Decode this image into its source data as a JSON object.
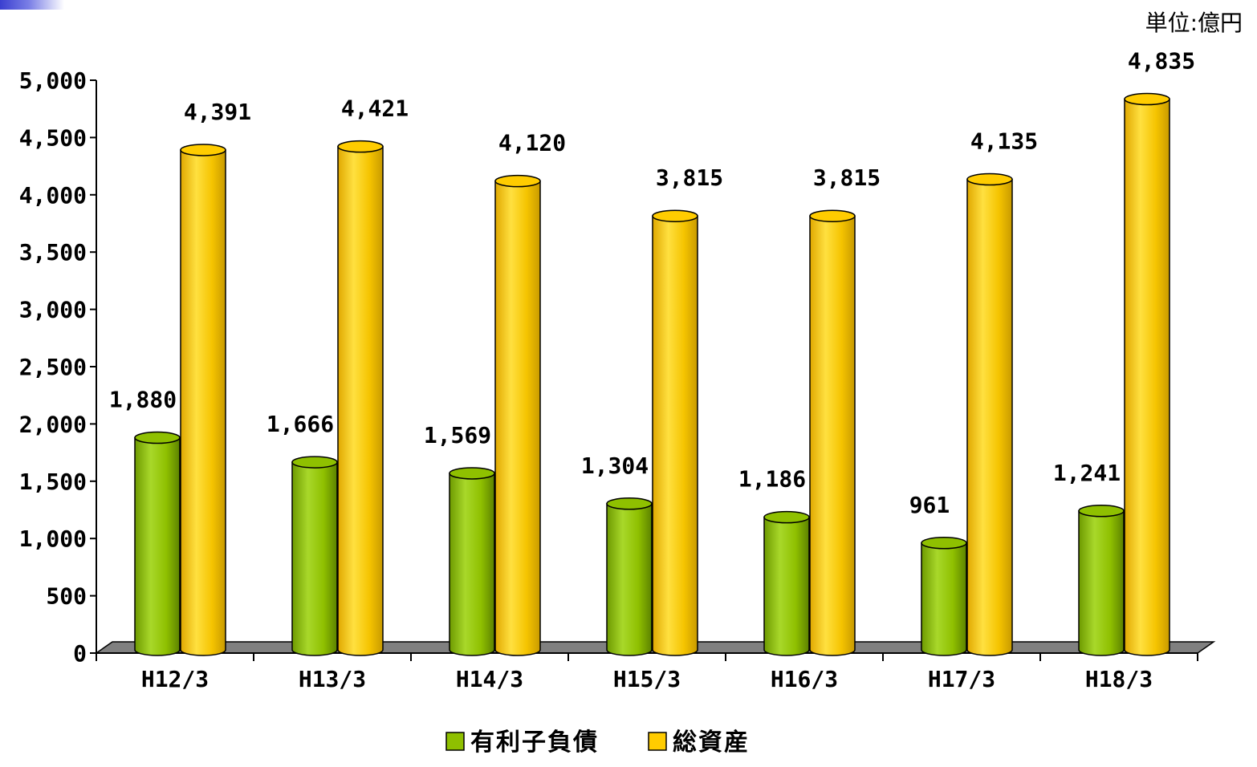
{
  "unit_label": "単位:億円",
  "colors": {
    "debt": "#8fc000",
    "assets": "#ffcc00",
    "floor": "#808080"
  },
  "chart_data": {
    "type": "bar",
    "title": "",
    "xlabel": "",
    "ylabel": "",
    "ylim": [
      0,
      5000
    ],
    "yticks": [
      "0",
      "500",
      "1,000",
      "1,500",
      "2,000",
      "2,500",
      "3,000",
      "3,500",
      "4,000",
      "4,500",
      "5,000"
    ],
    "categories": [
      "H12/3",
      "H13/3",
      "H14/3",
      "H15/3",
      "H16/3",
      "H17/3",
      "H18/3"
    ],
    "series": [
      {
        "name": "有利子負債",
        "values": [
          1880,
          1666,
          1569,
          1304,
          1186,
          961,
          1241
        ],
        "labels": [
          "1,880",
          "1,666",
          "1,569",
          "1,304",
          "1,186",
          "961",
          "1,241"
        ]
      },
      {
        "name": "総資産",
        "values": [
          4391,
          4421,
          4120,
          3815,
          3815,
          4135,
          4835
        ],
        "labels": [
          "4,391",
          "4,421",
          "4,120",
          "3,815",
          "3,815",
          "4,135",
          "4,835"
        ]
      }
    ],
    "legend_position": "bottom",
    "grid": false
  }
}
